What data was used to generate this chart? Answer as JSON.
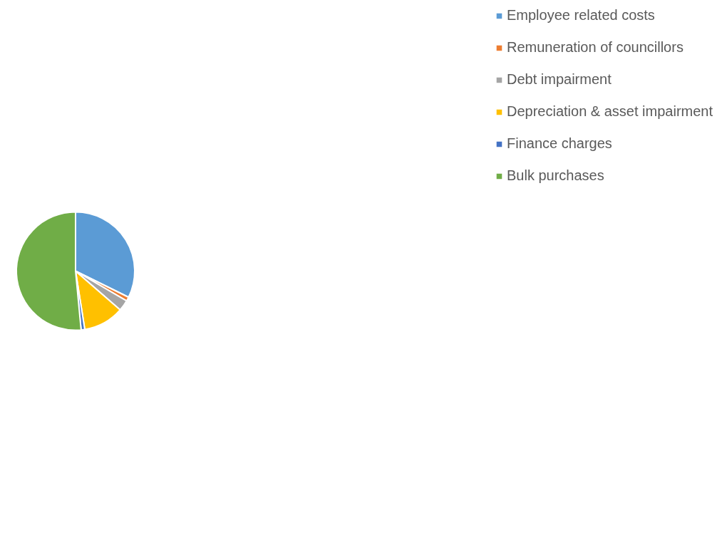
{
  "chart_data": {
    "type": "pie",
    "categories": [
      "Employee related costs",
      "Remuneration of councillors",
      "Debt impairment",
      "Depreciation & asset impairment",
      "Finance charges",
      "Bulk purchases"
    ],
    "values": [
      32.3,
      1.1,
      3.0,
      11.1,
      1.0,
      51.5
    ],
    "colors": [
      "#5b9bd5",
      "#ed7d31",
      "#a5a5a5",
      "#ffc000",
      "#4472c4",
      "#70ad47"
    ],
    "legend": "right"
  }
}
